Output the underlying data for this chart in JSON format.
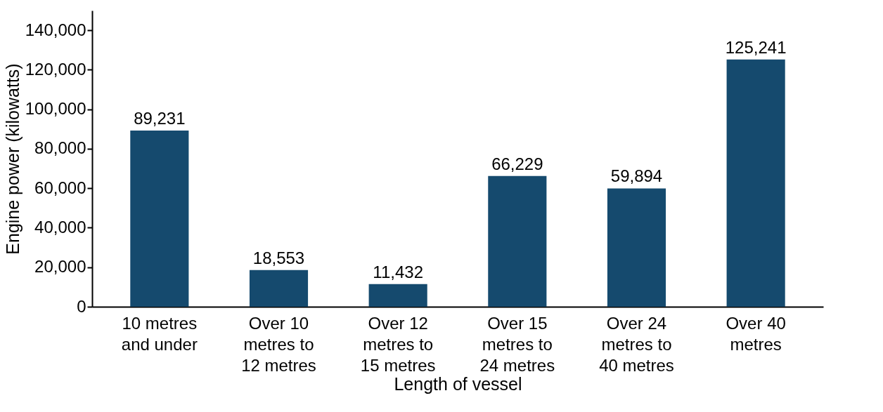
{
  "chart_data": {
    "type": "bar",
    "xlabel": "Length of vessel",
    "ylabel": "Engine power (kilowatts)",
    "categories": [
      "10 metres and under",
      "Over 10 metres to 12 metres",
      "Over 12 metres to 15 metres",
      "Over 15 metres to 24 metres",
      "Over 24 metres to 40 metres",
      "Over 40 metres"
    ],
    "values": [
      89231,
      18553,
      11432,
      66229,
      59894,
      125241
    ],
    "color": "#154a6e",
    "value_labels": [
      "89,231",
      "18,553",
      "11,432",
      "66,229",
      "59,894",
      "125,241"
    ],
    "ylim": [
      0,
      150000
    ],
    "yticks": [
      0,
      {
        "value": 20000,
        "label": "20,000"
      },
      {
        "value": 40000,
        "label": "40,000"
      },
      {
        "value": 60000,
        "label": "60,000"
      },
      {
        "value": 80000,
        "label": "80,000"
      },
      {
        "value": 100000,
        "label": "100,000"
      },
      {
        "value": 120000,
        "label": "120,000"
      },
      {
        "value": 140000,
        "label": "140,000"
      }
    ],
    "grid": false
  }
}
